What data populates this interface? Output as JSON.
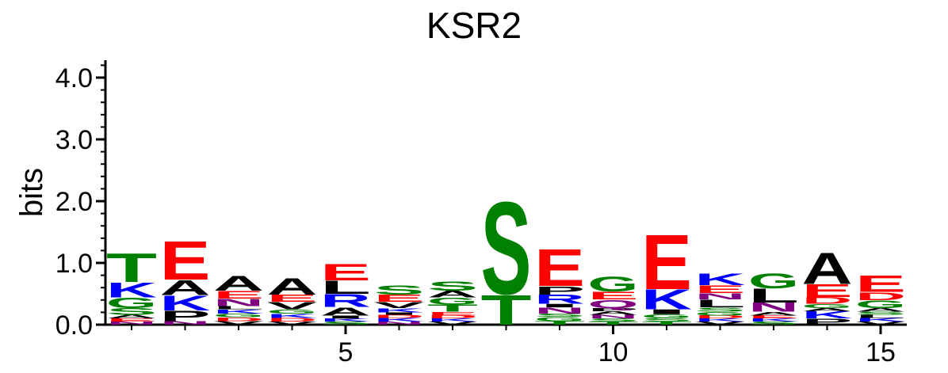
{
  "chart_data": {
    "type": "sequence-logo",
    "title": "KSR2",
    "ylabel": "bits",
    "xlabel": "",
    "ylim": [
      0,
      4.3
    ],
    "xlim": [
      0.5,
      15.5
    ],
    "y_ticks": [
      "0.0",
      "1.0",
      "2.0",
      "3.0",
      "4.0"
    ],
    "y_tick_values": [
      0,
      1,
      2,
      3,
      4
    ],
    "x_ticks": [
      "5",
      "10",
      "15"
    ],
    "x_tick_values": [
      5,
      10,
      15
    ],
    "grid": false,
    "colors": {
      "A": "#000000",
      "V": "#000000",
      "L": "#000000",
      "I": "#000000",
      "P": "#000000",
      "F": "#000000",
      "W": "#000000",
      "M": "#000000",
      "K": "#0000ff",
      "R": "#0000ff",
      "H": "#0000ff",
      "E": "#ff0000",
      "D": "#ff0000",
      "S": "#008000",
      "T": "#008000",
      "G": "#008000",
      "C": "#008000",
      "Y": "#008000",
      "N": "#800080",
      "Q": "#800080"
    },
    "positions": [
      {
        "position": 1,
        "letters": [
          {
            "letter": "N",
            "bits": 0.05
          },
          {
            "letter": "E",
            "bits": 0.05
          },
          {
            "letter": "A",
            "bits": 0.06
          },
          {
            "letter": "S",
            "bits": 0.11
          },
          {
            "letter": "G",
            "bits": 0.17
          },
          {
            "letter": "K",
            "bits": 0.25
          },
          {
            "letter": "T",
            "bits": 0.48
          }
        ]
      },
      {
        "position": 2,
        "letters": [
          {
            "letter": "N",
            "bits": 0.06
          },
          {
            "letter": "P",
            "bits": 0.17
          },
          {
            "letter": "K",
            "bits": 0.25
          },
          {
            "letter": "A",
            "bits": 0.25
          },
          {
            "letter": "E",
            "bits": 0.64
          }
        ]
      },
      {
        "position": 3,
        "letters": [
          {
            "letter": "V",
            "bits": 0.06
          },
          {
            "letter": "D",
            "bits": 0.06
          },
          {
            "letter": "G",
            "bits": 0.06
          },
          {
            "letter": "K",
            "bits": 0.07
          },
          {
            "letter": "L",
            "bits": 0.05
          },
          {
            "letter": "N",
            "bits": 0.12
          },
          {
            "letter": "E",
            "bits": 0.13
          },
          {
            "letter": "A",
            "bits": 0.25
          }
        ]
      },
      {
        "position": 4,
        "letters": [
          {
            "letter": "V",
            "bits": 0.05
          },
          {
            "letter": "D",
            "bits": 0.06
          },
          {
            "letter": "K",
            "bits": 0.07
          },
          {
            "letter": "G",
            "bits": 0.07
          },
          {
            "letter": "V",
            "bits": 0.12
          },
          {
            "letter": "E",
            "bits": 0.12
          },
          {
            "letter": "A",
            "bits": 0.27
          }
        ]
      },
      {
        "position": 5,
        "letters": [
          {
            "letter": "S",
            "bits": 0.05
          },
          {
            "letter": "K",
            "bits": 0.05
          },
          {
            "letter": "I",
            "bits": 0.05
          },
          {
            "letter": "A",
            "bits": 0.14
          },
          {
            "letter": "R",
            "bits": 0.21
          },
          {
            "letter": "L",
            "bits": 0.22
          },
          {
            "letter": "E",
            "bits": 0.27
          }
        ]
      },
      {
        "position": 6,
        "letters": [
          {
            "letter": "N",
            "bits": 0.05
          },
          {
            "letter": "K",
            "bits": 0.06
          },
          {
            "letter": "D",
            "bits": 0.05
          },
          {
            "letter": "I",
            "bits": 0.04
          },
          {
            "letter": "K",
            "bits": 0.07
          },
          {
            "letter": "V",
            "bits": 0.1
          },
          {
            "letter": "E",
            "bits": 0.12
          },
          {
            "letter": "S",
            "bits": 0.15
          }
        ]
      },
      {
        "position": 7,
        "letters": [
          {
            "letter": "V",
            "bits": 0.05
          },
          {
            "letter": "K",
            "bits": 0.05
          },
          {
            "letter": "D",
            "bits": 0.05
          },
          {
            "letter": "E",
            "bits": 0.06
          },
          {
            "letter": "T",
            "bits": 0.12
          },
          {
            "letter": "G",
            "bits": 0.11
          },
          {
            "letter": "A",
            "bits": 0.11
          },
          {
            "letter": "S",
            "bits": 0.15
          }
        ]
      },
      {
        "position": 8,
        "letters": [
          {
            "letter": "T",
            "bits": 0.5
          },
          {
            "letter": "S",
            "bits": 1.54
          }
        ]
      },
      {
        "position": 9,
        "letters": [
          {
            "letter": "T",
            "bits": 0.06
          },
          {
            "letter": "G",
            "bits": 0.07
          },
          {
            "letter": "S",
            "bits": 0.05
          },
          {
            "letter": "N",
            "bits": 0.1
          },
          {
            "letter": "I",
            "bits": 0.06
          },
          {
            "letter": "R",
            "bits": 0.15
          },
          {
            "letter": "P",
            "bits": 0.14
          },
          {
            "letter": "E",
            "bits": 0.62
          }
        ]
      },
      {
        "position": 10,
        "letters": [
          {
            "letter": "T",
            "bits": 0.05
          },
          {
            "letter": "S",
            "bits": 0.05
          },
          {
            "letter": "N",
            "bits": 0.06
          },
          {
            "letter": "A",
            "bits": 0.06
          },
          {
            "letter": "P",
            "bits": 0.05
          },
          {
            "letter": "Q",
            "bits": 0.14
          },
          {
            "letter": "E",
            "bits": 0.13
          },
          {
            "letter": "G",
            "bits": 0.25
          }
        ]
      },
      {
        "position": 11,
        "letters": [
          {
            "letter": "T",
            "bits": 0.05
          },
          {
            "letter": "S",
            "bits": 0.06
          },
          {
            "letter": "G",
            "bits": 0.06
          },
          {
            "letter": "I",
            "bits": 0.08
          },
          {
            "letter": "K",
            "bits": 0.33
          },
          {
            "letter": "E",
            "bits": 0.91
          }
        ]
      },
      {
        "position": 12,
        "letters": [
          {
            "letter": "V",
            "bits": 0.05
          },
          {
            "letter": "K",
            "bits": 0.05
          },
          {
            "letter": "D",
            "bits": 0.05
          },
          {
            "letter": "G",
            "bits": 0.06
          },
          {
            "letter": "S",
            "bits": 0.07
          },
          {
            "letter": "L",
            "bits": 0.13
          },
          {
            "letter": "N",
            "bits": 0.1
          },
          {
            "letter": "E",
            "bits": 0.13
          },
          {
            "letter": "K",
            "bits": 0.2
          }
        ]
      },
      {
        "position": 13,
        "letters": [
          {
            "letter": "S",
            "bits": 0.05
          },
          {
            "letter": "K",
            "bits": 0.05
          },
          {
            "letter": "E",
            "bits": 0.05
          },
          {
            "letter": "A",
            "bits": 0.06
          },
          {
            "letter": "N",
            "bits": 0.15
          },
          {
            "letter": "L",
            "bits": 0.23
          },
          {
            "letter": "G",
            "bits": 0.25
          }
        ]
      },
      {
        "position": 14,
        "letters": [
          {
            "letter": "P",
            "bits": 0.1
          },
          {
            "letter": "K",
            "bits": 0.12
          },
          {
            "letter": "A",
            "bits": 0.05
          },
          {
            "letter": "G",
            "bits": 0.07
          },
          {
            "letter": "D",
            "bits": 0.11
          },
          {
            "letter": "E",
            "bits": 0.21
          },
          {
            "letter": "A",
            "bits": 0.52
          }
        ]
      },
      {
        "position": 15,
        "letters": [
          {
            "letter": "V",
            "bits": 0.05
          },
          {
            "letter": "K",
            "bits": 0.06
          },
          {
            "letter": "L",
            "bits": 0.05
          },
          {
            "letter": "S",
            "bits": 0.05
          },
          {
            "letter": "A",
            "bits": 0.06
          },
          {
            "letter": "G",
            "bits": 0.13
          },
          {
            "letter": "D",
            "bits": 0.13
          },
          {
            "letter": "E",
            "bits": 0.27
          }
        ]
      }
    ]
  }
}
